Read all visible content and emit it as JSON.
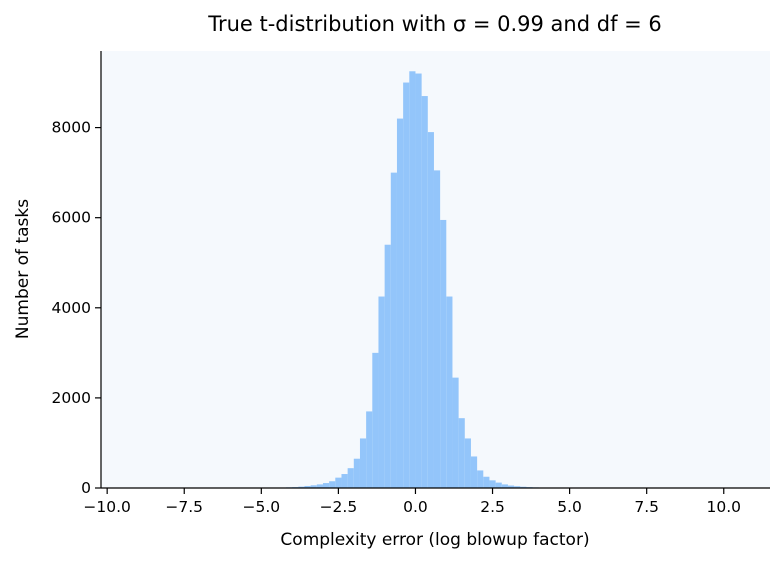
{
  "chart_data": {
    "type": "bar",
    "title": "True t-distribution with σ = 0.99 and df = 6",
    "xlabel": "Complexity error (log blowup factor)",
    "ylabel": "Number of tasks",
    "xlim": [
      -10.2,
      11.5
    ],
    "ylim": [
      0,
      9700
    ],
    "x_ticks": [
      -10,
      -7.5,
      -5,
      -2.5,
      0,
      2.5,
      5,
      7.5,
      10
    ],
    "x_tick_labels": [
      "−10.0",
      "−7.5",
      "−5.0",
      "−2.5",
      "0.0",
      "2.5",
      "5.0",
      "7.5",
      "10.0"
    ],
    "y_ticks": [
      0,
      2000,
      4000,
      6000,
      8000
    ],
    "y_tick_labels": [
      "0",
      "2000",
      "4000",
      "6000",
      "8000"
    ],
    "bin_width": 0.2,
    "bar_color": "#93c5fa",
    "plot_background": "#f5f9fd",
    "grid": false,
    "legend": "none",
    "bins_left": [
      -4.2,
      -4.0,
      -3.8,
      -3.6,
      -3.4,
      -3.2,
      -3.0,
      -2.8,
      -2.6,
      -2.4,
      -2.2,
      -2.0,
      -1.8,
      -1.6,
      -1.4,
      -1.2,
      -1.0,
      -0.8,
      -0.6,
      -0.4,
      -0.2,
      0.0,
      0.2,
      0.4,
      0.6,
      0.8,
      1.0,
      1.2,
      1.4,
      1.6,
      1.8,
      2.0,
      2.2,
      2.4,
      2.6,
      2.8,
      3.0,
      3.2,
      3.4,
      3.6,
      3.8,
      4.0,
      4.2
    ],
    "values": [
      15,
      20,
      30,
      45,
      60,
      80,
      110,
      150,
      230,
      310,
      440,
      650,
      1100,
      1700,
      3000,
      4250,
      5400,
      7000,
      8200,
      9000,
      9250,
      9200,
      8700,
      7900,
      7050,
      5950,
      4250,
      2450,
      1550,
      1100,
      700,
      390,
      250,
      170,
      120,
      80,
      55,
      40,
      28,
      20,
      14,
      10,
      7
    ]
  }
}
